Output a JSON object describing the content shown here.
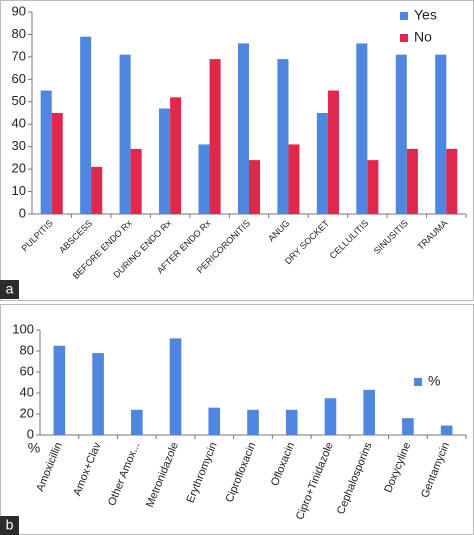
{
  "chart_data": [
    {
      "type": "bar",
      "panel_label": "a",
      "categories": [
        "PULPITIS",
        "ABSCESS",
        "BEFORE ENDO Rx",
        "DURING ENDO Rx",
        "AFTER ENDO Rx",
        "PERICORONITIS",
        "ANUG",
        "DRY SOCKET",
        "CELLULITIS",
        "SINUSITIS",
        "TRAUMA"
      ],
      "series": [
        {
          "name": "Yes",
          "color": "#4f86e0",
          "values": [
            55,
            79,
            71,
            47,
            31,
            76,
            69,
            45,
            76,
            71,
            71
          ]
        },
        {
          "name": "No",
          "color": "#e0284d",
          "values": [
            45,
            21,
            29,
            52,
            69,
            24,
            31,
            55,
            24,
            29,
            29
          ]
        }
      ],
      "ylim": [
        0,
        90
      ],
      "yticks": [
        0,
        10,
        20,
        30,
        40,
        50,
        60,
        70,
        80,
        90
      ],
      "legend": "top-right"
    },
    {
      "type": "bar",
      "panel_label": "b",
      "y_label": "%",
      "categories": [
        "Amoxicillin",
        "Amox+Clav",
        "Other Amox...",
        "Metronidazole",
        "Erythromycin",
        "Ciprofloxacin",
        "Ofloxacin",
        "Cipro+Tinidazole",
        "Cephalosporins",
        "Doxycyline",
        "Gentamycin"
      ],
      "series": [
        {
          "name": "%",
          "color": "#4f86e0",
          "values": [
            85,
            78,
            24,
            92,
            26,
            24,
            24,
            35,
            43,
            16,
            9
          ]
        }
      ],
      "ylim": [
        0,
        100
      ],
      "yticks": [
        0,
        20,
        40,
        60,
        80,
        100
      ],
      "legend": "right"
    }
  ]
}
